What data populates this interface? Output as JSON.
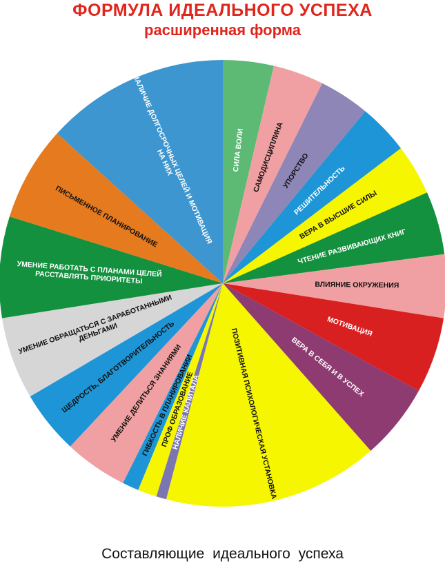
{
  "header": {
    "title": "ФОРМУЛА ИДЕАЛЬНОГО УСПЕХА",
    "subtitle": "расширенная форма"
  },
  "caption": "Составляющие идеального успеха",
  "chart_data": {
    "type": "pie",
    "start_angle_deg": -90,
    "direction": "clockwise",
    "slices": [
      {
        "label": "СИЛА ВОЛИ",
        "value": 4,
        "color": "#5cba75",
        "text_color": "#ffffff"
      },
      {
        "label": "САМОДИСЦИПЛИНА",
        "value": 4,
        "color": "#f0a0a2",
        "text_color": "#111111"
      },
      {
        "label": "УПОРСТВО",
        "value": 4,
        "color": "#8e86b6",
        "text_color": "#111111"
      },
      {
        "label": "РЕШИТЕЛЬНОСТЬ",
        "value": 4,
        "color": "#1d95d6",
        "text_color": "#ffffff"
      },
      {
        "label": "ВЕРА В ВЫСШИЕ СИЛЫ",
        "value": 4,
        "color": "#f6f600",
        "text_color": "#111111"
      },
      {
        "label": "ЧТЕНИЕ РАЗВИВАЮЩИХ КНИГ",
        "value": 5,
        "color": "#14913e",
        "text_color": "#ffffff"
      },
      {
        "label": "ВЛИЯНИЕ ОКРУЖЕНИЯ",
        "value": 5,
        "color": "#f0a0a2",
        "text_color": "#111111"
      },
      {
        "label": "МОТИВАЦИЯ",
        "value": 6,
        "color": "#d92020",
        "text_color": "#ffffff"
      },
      {
        "label": "ВЕРА В СЕБЯ И В УСПЕХ",
        "value": 6,
        "color": "#8e3b72",
        "text_color": "#ffffff"
      },
      {
        "label": "ПОЗИТИВНАЯ ПСИХОЛОГИЧЕСКАЯ УСТАНОВКА",
        "value": 17,
        "color": "#f6f600",
        "text_color": "#111111"
      },
      {
        "label": "НАЛИЧИЕ КАПИТАЛА",
        "value": 0.8,
        "color": "#7b76b2",
        "text_color": "#ffffff"
      },
      {
        "label": "ПРОФ ОБРАЗОВАНИЕ",
        "value": 1.5,
        "color": "#f6f600",
        "text_color": "#111111"
      },
      {
        "label": "ГИБКОСТЬ В ПЛАНИРОВАНИИ",
        "value": 1.3,
        "color": "#1d95d6",
        "text_color": "#111111"
      },
      {
        "label": "УМЕНИЕ ДЕЛИТЬСЯ ЗНАНИЯМИ",
        "value": 5,
        "color": "#f0a0a2",
        "text_color": "#111111"
      },
      {
        "label": "ЩЕДРОСТЬ, БЛАГОТВОРИТЕЛЬНОСТЬ",
        "value": 5,
        "color": "#1d95d6",
        "text_color": "#111111"
      },
      {
        "label": "УМЕНИЕ ОБРАЩАТЬСЯ С ЗАРАБОТАННЫМИ ДЕНЬГАМИ",
        "value": 6.5,
        "color": "#d6d6d6",
        "text_color": "#111111"
      },
      {
        "label": "УМЕНИЕ РАБОТАТЬ С ПЛАНАМИ ЦЕЛЕЙ РАССТАВЛЯТЬ ПРИОРИТЕТЫ",
        "value": 8,
        "color": "#14913e",
        "text_color": "#ffffff"
      },
      {
        "label": "ПИСЬМЕННОЕ ПЛАНИРОВАНИЕ",
        "value": 7.5,
        "color": "#e57a1e",
        "text_color": "#111111"
      },
      {
        "label": "НАЛИЧИЕ ДОЛГОСРОЧНЫХ ЦЕЛЕЙ И МОТИВАЦИЯ НА НИХ",
        "value": 14.5,
        "color": "#3d96cf",
        "text_color": "#ffffff"
      }
    ]
  }
}
